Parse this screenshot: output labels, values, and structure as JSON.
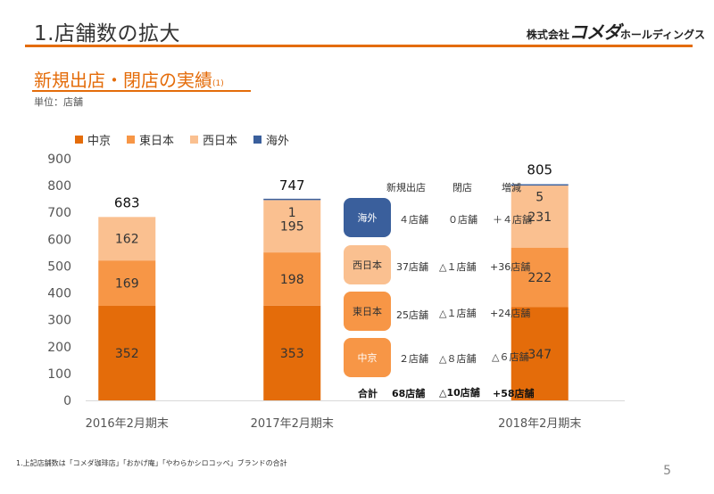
{
  "slide": {
    "title": "1.店舗数の拡大",
    "logo_prefix": "株式会社",
    "logo_brand": "コメダ",
    "logo_suffix": "ホールディングス",
    "subtitle": "新規出店・閉店の実績",
    "subtitle_note": "(1)",
    "unit_note": "単位：店舗",
    "footnote": "1.上記店舗数は「コメダ珈琲店」「おかげ庵」「やわらかシロコッペ」ブランドの合計",
    "page_number": "5"
  },
  "colors": {
    "chukyo": "#e46c0a",
    "higashi": "#f79646",
    "nishi": "#fac090",
    "kaigai": "#3a5f9c",
    "accent": "#e46c0a"
  },
  "chart_data": {
    "type": "bar",
    "stacked": true,
    "categories": [
      "2016年2月期末",
      "",
      "2017年2月期末",
      "",
      "",
      "2018年2月期末"
    ],
    "series": [
      {
        "name": "中京",
        "values": [
          352,
          null,
          353,
          null,
          null,
          347
        ]
      },
      {
        "name": "東日本",
        "values": [
          169,
          null,
          198,
          null,
          null,
          222
        ]
      },
      {
        "name": "西日本",
        "values": [
          162,
          null,
          195,
          null,
          null,
          231
        ]
      },
      {
        "name": "海外",
        "values": [
          0,
          null,
          1,
          null,
          null,
          5
        ]
      }
    ],
    "totals": [
      683,
      null,
      747,
      null,
      null,
      805
    ],
    "ylim": [
      0,
      900
    ],
    "yticks": [
      0,
      100,
      200,
      300,
      400,
      500,
      600,
      700,
      800,
      900
    ],
    "legend_position": "top-left",
    "grid": false
  },
  "summary_table": {
    "headers": {
      "new": "新規出店",
      "closed": "閉店",
      "change": "増減"
    },
    "rows": [
      {
        "region": "海外",
        "new": "４店舗",
        "closed": "０店舗",
        "change": "＋４店舗"
      },
      {
        "region": "西日本",
        "new": "37店舗",
        "closed": "△１店舗",
        "change": "+36店舗"
      },
      {
        "region": "東日本",
        "new": "25店舗",
        "closed": "△１店舗",
        "change": "+24店舗"
      },
      {
        "region": "中京",
        "new": "２店舗",
        "closed": "△８店舗",
        "change": "△６店舗"
      }
    ],
    "total": {
      "label": "合計",
      "new": "68店舗",
      "closed": "△10店舗",
      "change": "+58店舗"
    }
  }
}
